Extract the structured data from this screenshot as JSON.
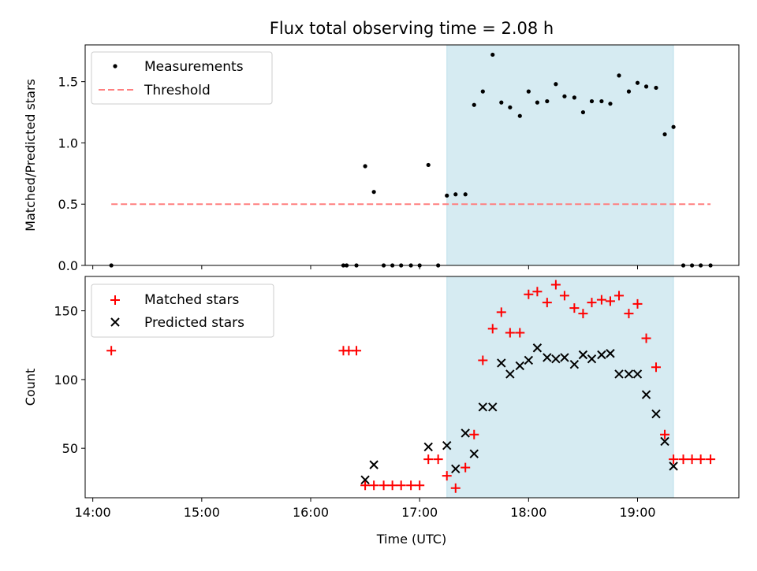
{
  "chart_data": [
    {
      "type": "scatter",
      "title": "Flux total observing time = 2.08 h",
      "ylabel": "Matched/Predicted stars",
      "xlabel": "",
      "xlim": [
        13.93,
        19.93
      ],
      "ylim": [
        0,
        1.8
      ],
      "x_ticks": [
        14,
        15,
        16,
        17,
        18,
        19
      ],
      "y_ticks": [
        0.0,
        0.5,
        1.0,
        1.5
      ],
      "y_tick_labels": [
        "0.0",
        "0.5",
        "1.0",
        "1.5"
      ],
      "shaded_span": [
        17.25,
        19.33
      ],
      "legend_position": "upper-left",
      "series": [
        {
          "name": "Measurements",
          "marker": "dot",
          "color": "#000000",
          "x": [
            14.17,
            16.3,
            16.33,
            16.42,
            16.5,
            16.58,
            16.67,
            16.75,
            16.83,
            16.92,
            17.0,
            17.08,
            17.17,
            17.25,
            17.33,
            17.42,
            17.5,
            17.58,
            17.67,
            17.75,
            17.83,
            17.92,
            18.0,
            18.08,
            18.17,
            18.25,
            18.33,
            18.42,
            18.5,
            18.58,
            18.67,
            18.75,
            18.83,
            18.92,
            19.0,
            19.08,
            19.17,
            19.25,
            19.33,
            19.42,
            19.5,
            19.58,
            19.67
          ],
          "y": [
            0,
            0,
            0,
            0,
            0.81,
            0.6,
            0,
            0,
            0,
            0,
            0,
            0.82,
            0,
            0.57,
            0.58,
            0.58,
            1.31,
            1.42,
            1.72,
            1.33,
            1.29,
            1.22,
            1.42,
            1.33,
            1.34,
            1.48,
            1.38,
            1.37,
            1.25,
            1.34,
            1.34,
            1.32,
            1.55,
            1.42,
            1.49,
            1.46,
            1.45,
            1.07,
            1.13,
            0,
            0,
            0,
            0
          ]
        },
        {
          "name": "Threshold",
          "marker": "dashed-line",
          "color": "#ff7f7f",
          "x": [
            14.17,
            19.67
          ],
          "y": [
            0.5,
            0.5
          ]
        }
      ]
    },
    {
      "type": "scatter",
      "title": "",
      "ylabel": "Count",
      "xlabel": "Time (UTC)",
      "xlim": [
        13.93,
        19.93
      ],
      "ylim": [
        14,
        175
      ],
      "x_ticks": [
        14,
        15,
        16,
        17,
        18,
        19
      ],
      "x_tick_labels": [
        "14:00",
        "15:00",
        "16:00",
        "17:00",
        "18:00",
        "19:00"
      ],
      "y_ticks": [
        50,
        100,
        150
      ],
      "y_tick_labels": [
        "50",
        "100",
        "150"
      ],
      "shaded_span": [
        17.25,
        19.33
      ],
      "legend_position": "upper-left",
      "series": [
        {
          "name": "Matched stars",
          "marker": "plus",
          "color": "#ff0000",
          "x": [
            14.17,
            16.3,
            16.35,
            16.42,
            16.5,
            16.58,
            16.67,
            16.75,
            16.83,
            16.92,
            17.0,
            17.08,
            17.17,
            17.25,
            17.33,
            17.42,
            17.5,
            17.58,
            17.67,
            17.75,
            17.83,
            17.92,
            18.0,
            18.08,
            18.17,
            18.25,
            18.33,
            18.42,
            18.5,
            18.58,
            18.67,
            18.75,
            18.83,
            18.92,
            19.0,
            19.08,
            19.17,
            19.25,
            19.33,
            19.42,
            19.5,
            19.58,
            19.67
          ],
          "y": [
            121,
            121,
            121,
            121,
            23,
            23,
            23,
            23,
            23,
            23,
            23,
            42,
            42,
            30,
            21,
            36,
            60,
            114,
            137,
            149,
            134,
            134,
            162,
            164,
            156,
            169,
            161,
            152,
            148,
            156,
            158,
            157,
            161,
            148,
            155,
            130,
            109,
            60,
            42,
            42,
            42,
            42,
            42
          ]
        },
        {
          "name": "Predicted stars",
          "marker": "x",
          "color": "#000000",
          "x": [
            16.5,
            16.58,
            17.08,
            17.25,
            17.33,
            17.42,
            17.5,
            17.58,
            17.67,
            17.75,
            17.83,
            17.92,
            18.0,
            18.08,
            18.17,
            18.25,
            18.33,
            18.42,
            18.5,
            18.58,
            18.67,
            18.75,
            18.83,
            18.92,
            19.0,
            19.08,
            19.17,
            19.25,
            19.33
          ],
          "y": [
            27,
            38,
            51,
            52,
            35,
            61,
            46,
            80,
            80,
            112,
            104,
            110,
            114,
            123,
            116,
            115,
            116,
            111,
            118,
            115,
            118,
            119,
            104,
            104,
            104,
            89,
            75,
            55,
            37
          ]
        }
      ]
    }
  ]
}
